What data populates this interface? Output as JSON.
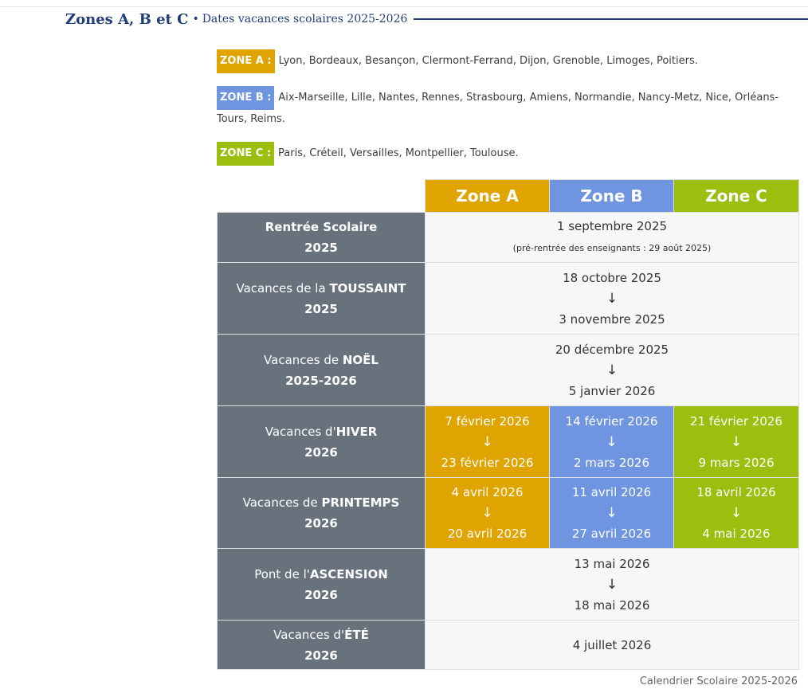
{
  "header": {
    "title": "Zones A, B et C",
    "bullet": "•",
    "subtitle": "Dates vacances scolaires 2025-2026"
  },
  "zones": [
    {
      "badge": "ZONE A :",
      "cities": "Lyon, Bordeaux, Besançon, Clermont-Ferrand, Dijon, Grenoble, Limoges, Poitiers.",
      "color": "#e0a400"
    },
    {
      "badge": "ZONE B :",
      "cities": "Aix-Marseille, Lille, Nantes, Rennes, Strasbourg, Amiens, Normandie, Nancy-Metz, Nice, Orléans-Tours, Reims.",
      "color": "#6f95e0"
    },
    {
      "badge": "ZONE C :",
      "cities": "Paris, Créteil, Versailles, Montpellier, Toulouse.",
      "color": "#9cbe0f"
    }
  ],
  "table": {
    "headers": [
      "Zone A",
      "Zone B",
      "Zone C"
    ],
    "arrow": "↓",
    "rows": {
      "rentree": {
        "label_pre": "",
        "label_bold": "Rentrée Scolaire",
        "year": "2025",
        "date": "1 septembre 2025",
        "note": "(pré-rentrée des enseignants : 29 août 2025)"
      },
      "toussaint": {
        "label_pre": "Vacances de la ",
        "label_bold": "TOUSSAINT",
        "year": "2025",
        "start": "18 octobre 2025",
        "end": "3 novembre 2025"
      },
      "noel": {
        "label_pre": "Vacances de ",
        "label_bold": "NOËL",
        "year": "2025-2026",
        "start": "20 décembre 2025",
        "end": "5 janvier 2026"
      },
      "hiver": {
        "label_pre": "Vacances d'",
        "label_bold": "HIVER",
        "year": "2026",
        "a_start": "7 février 2026",
        "a_end": "23 février 2026",
        "b_start": "14 février 2026",
        "b_end": "2 mars 2026",
        "c_start": "21 février 2026",
        "c_end": "9 mars 2026"
      },
      "printemps": {
        "label_pre": "Vacances de ",
        "label_bold": "PRINTEMPS",
        "year": "2026",
        "a_start": "4 avril 2026",
        "a_end": "20 avril 2026",
        "b_start": "11 avril 2026",
        "b_end": "27 avril 2026",
        "c_start": "18 avril 2026",
        "c_end": "4 mai 2026"
      },
      "ascension": {
        "label_pre": "Pont de l'",
        "label_bold": "ASCENSION",
        "year": "2026",
        "start": "13 mai 2026",
        "end": "18 mai 2026"
      },
      "ete": {
        "label_pre": "Vacances d'",
        "label_bold": "ÉTÉ",
        "year": "2026",
        "date": "4 juillet 2026"
      }
    }
  },
  "caption": "Calendrier Scolaire 2025-2026"
}
